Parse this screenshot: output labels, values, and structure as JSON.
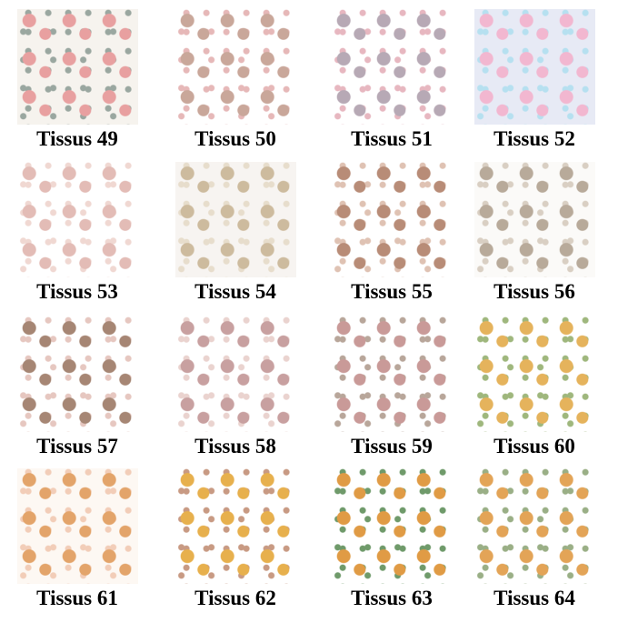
{
  "tiles": [
    {
      "label": "Tissus 49",
      "tint": "#e8a0a0",
      "accent": "#9aa7a0",
      "bg": "#f6f3ee"
    },
    {
      "label": "Tissus 50",
      "tint": "#c9a79a",
      "accent": "#e6b8b8",
      "bg": "#ffffff"
    },
    {
      "label": "Tissus 51",
      "tint": "#b7a9b5",
      "accent": "#e7b7c0",
      "bg": "#ffffff"
    },
    {
      "label": "Tissus 52",
      "tint": "#f2b7d0",
      "accent": "#b6e0f0",
      "bg": "#e7eaf5"
    },
    {
      "label": "Tissus 53",
      "tint": "#e3bcb6",
      "accent": "#f0d8d2",
      "bg": "#ffffff"
    },
    {
      "label": "Tissus 54",
      "tint": "#cdbb9e",
      "accent": "#e7ddcc",
      "bg": "#f7f4f1"
    },
    {
      "label": "Tissus 55",
      "tint": "#b88c77",
      "accent": "#dfc2b3",
      "bg": "#ffffff"
    },
    {
      "label": "Tissus 56",
      "tint": "#b8aa9a",
      "accent": "#d9cfc3",
      "bg": "#fbfaf8"
    },
    {
      "label": "Tissus 57",
      "tint": "#a68674",
      "accent": "#e6c7c0",
      "bg": "#ffffff"
    },
    {
      "label": "Tissus 58",
      "tint": "#c8a0a0",
      "accent": "#ead3cf",
      "bg": "#ffffff"
    },
    {
      "label": "Tissus 59",
      "tint": "#c99a98",
      "accent": "#b8a69a",
      "bg": "#ffffff"
    },
    {
      "label": "Tissus 60",
      "tint": "#e5b35c",
      "accent": "#9fb77d",
      "bg": "#ffffff"
    },
    {
      "label": "Tissus 61",
      "tint": "#e3a46a",
      "accent": "#f2cdb8",
      "bg": "#fdf8f3"
    },
    {
      "label": "Tissus 62",
      "tint": "#e7b04d",
      "accent": "#c89a83",
      "bg": "#ffffff"
    },
    {
      "label": "Tissus 63",
      "tint": "#e09b45",
      "accent": "#6f9a6a",
      "bg": "#ffffff"
    },
    {
      "label": "Tissus 64",
      "tint": "#e3a457",
      "accent": "#9aaf86",
      "bg": "#ffffff"
    }
  ]
}
